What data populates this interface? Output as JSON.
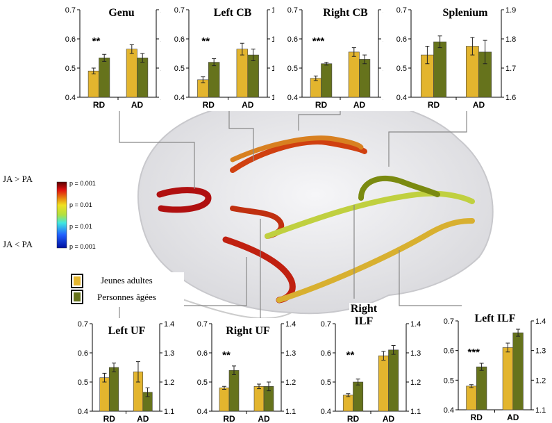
{
  "legend": [
    {
      "name": "Jeunes adultes",
      "color": "#e3b52e"
    },
    {
      "name": "Personnes âgées",
      "color": "#66731c"
    }
  ],
  "colorbar": {
    "top_label": "JA > PA",
    "bottom_label": "JA < PA",
    "tick_labels": [
      "p = 0.001",
      "p = 0.01",
      "p = 0.01",
      "p = 0.001"
    ]
  },
  "chart_data": [
    {
      "type": "bar",
      "title": "Genu",
      "annotation": "**",
      "categories": [
        "RD",
        "AD"
      ],
      "ylim": [
        0.4,
        0.7
      ],
      "yticks": [
        0.4,
        0.5,
        0.6,
        0.7
      ],
      "y2lim": [
        1.1,
        1.4
      ],
      "y2ticks": [
        1.1,
        1.2,
        1.3,
        1.4
      ],
      "series": [
        {
          "axis": "y",
          "values": [
            0.49,
            0.535
          ],
          "errors": [
            0.01,
            0.012
          ]
        },
        {
          "axis": "y2",
          "values": [
            1.265,
            1.235
          ],
          "errors": [
            0.015,
            0.015
          ]
        }
      ]
    },
    {
      "type": "bar",
      "title": "Left CB",
      "annotation": "**",
      "categories": [
        "RD",
        "AD"
      ],
      "ylim": [
        0.4,
        0.7
      ],
      "yticks": [
        0.4,
        0.5,
        0.6,
        0.7
      ],
      "y2lim": [
        1.1,
        1.4
      ],
      "y2ticks": [
        1.1,
        1.2,
        1.3,
        1.4
      ],
      "series": [
        {
          "axis": "y",
          "values": [
            0.46,
            0.52
          ],
          "errors": [
            0.01,
            0.012
          ]
        },
        {
          "axis": "y2",
          "values": [
            1.265,
            1.245
          ],
          "errors": [
            0.02,
            0.02
          ]
        }
      ]
    },
    {
      "type": "bar",
      "title": "Right CB",
      "annotation": "***",
      "categories": [
        "RD",
        "AD"
      ],
      "ylim": [
        0.4,
        0.7
      ],
      "yticks": [
        0.4,
        0.5,
        0.6,
        0.7
      ],
      "y2lim": [
        1.1,
        1.4
      ],
      "y2ticks": [
        1.1,
        1.2,
        1.3,
        1.4
      ],
      "series": [
        {
          "axis": "y",
          "values": [
            0.465,
            0.515
          ],
          "errors": [
            0.008,
            0.005
          ]
        },
        {
          "axis": "y2",
          "values": [
            1.255,
            1.23
          ],
          "errors": [
            0.015,
            0.015
          ]
        }
      ]
    },
    {
      "type": "bar",
      "title": "Splenium",
      "categories": [
        "RD",
        "AD"
      ],
      "ylim": [
        0.4,
        0.7
      ],
      "yticks": [
        0.4,
        0.5,
        0.6,
        0.7
      ],
      "y2lim": [
        1.6,
        1.9
      ],
      "y2ticks": [
        1.6,
        1.7,
        1.8,
        1.9
      ],
      "series": [
        {
          "axis": "y",
          "values": [
            0.545,
            0.59
          ],
          "errors": [
            0.03,
            0.02
          ]
        },
        {
          "axis": "y2",
          "values": [
            1.775,
            1.755
          ],
          "errors": [
            0.03,
            0.04
          ]
        }
      ]
    },
    {
      "type": "bar",
      "title": "Left UF",
      "categories": [
        "RD",
        "AD"
      ],
      "ylim": [
        0.4,
        0.7
      ],
      "yticks": [
        0.4,
        0.5,
        0.6,
        0.7
      ],
      "y2lim": [
        1.1,
        1.4
      ],
      "y2ticks": [
        1.1,
        1.2,
        1.3,
        1.4
      ],
      "series": [
        {
          "axis": "y",
          "values": [
            0.515,
            0.55
          ],
          "errors": [
            0.015,
            0.015
          ]
        },
        {
          "axis": "y2",
          "values": [
            1.235,
            1.165
          ],
          "errors": [
            0.035,
            0.015
          ]
        }
      ]
    },
    {
      "type": "bar",
      "title": "Right UF",
      "annotation": "**",
      "categories": [
        "RD",
        "AD"
      ],
      "ylim": [
        0.4,
        0.7
      ],
      "yticks": [
        0.4,
        0.5,
        0.6,
        0.7
      ],
      "y2lim": [
        1.1,
        1.4
      ],
      "y2ticks": [
        1.1,
        1.2,
        1.3,
        1.4
      ],
      "series": [
        {
          "axis": "y",
          "values": [
            0.48,
            0.54
          ],
          "errors": [
            0.005,
            0.015
          ]
        },
        {
          "axis": "y2",
          "values": [
            1.185,
            1.185
          ],
          "errors": [
            0.008,
            0.015
          ]
        }
      ]
    },
    {
      "type": "bar",
      "title": "Right ILF",
      "annotation": "**",
      "categories": [
        "RD",
        "AD"
      ],
      "ylim": [
        0.4,
        0.7
      ],
      "yticks": [
        0.4,
        0.5,
        0.6,
        0.7
      ],
      "y2lim": [
        1.1,
        1.4
      ],
      "y2ticks": [
        1.1,
        1.2,
        1.3,
        1.4
      ],
      "series": [
        {
          "axis": "y",
          "values": [
            0.455,
            0.5
          ],
          "errors": [
            0.005,
            0.01
          ]
        },
        {
          "axis": "y2",
          "values": [
            1.29,
            1.31
          ],
          "errors": [
            0.015,
            0.015
          ]
        }
      ]
    },
    {
      "type": "bar",
      "title": "Left ILF",
      "annotation": "***",
      "categories": [
        "RD",
        "AD"
      ],
      "ylim": [
        0.4,
        0.7
      ],
      "yticks": [
        0.4,
        0.5,
        0.6,
        0.7
      ],
      "y2lim": [
        1.1,
        1.4
      ],
      "y2ticks": [
        1.1,
        1.2,
        1.3,
        1.4
      ],
      "series": [
        {
          "axis": "y",
          "values": [
            0.48,
            0.545
          ],
          "errors": [
            0.005,
            0.012
          ]
        },
        {
          "axis": "y2",
          "values": [
            1.31,
            1.36
          ],
          "errors": [
            0.015,
            0.012
          ]
        }
      ]
    }
  ]
}
